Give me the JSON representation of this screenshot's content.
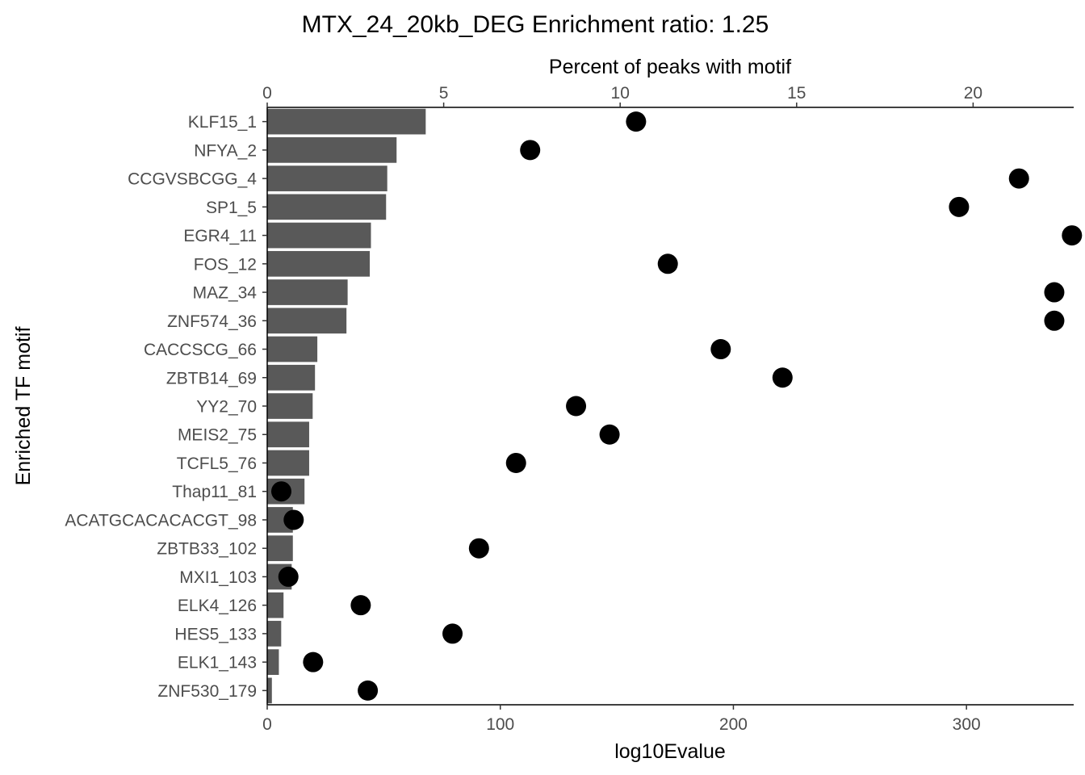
{
  "chart_data": {
    "type": "bar",
    "title": "MTX_24_20kb_DEG Enrichment ratio: 1.25",
    "ylabel": "Enriched TF motif",
    "xlabel_bottom": "log10Evalue",
    "xlabel_top": "Percent of peaks with motif",
    "xlim_bottom": [
      0,
      346
    ],
    "xlim_top": [
      0,
      22.85
    ],
    "xticks_bottom": [
      0,
      100,
      200,
      300
    ],
    "xticks_top": [
      0,
      5,
      10,
      15,
      20
    ],
    "grid": false,
    "categories": [
      "KLF15_1",
      "NFYA_2",
      "CCGVSBCGG_4",
      "SP1_5",
      "EGR4_11",
      "FOS_12",
      "MAZ_34",
      "ZNF574_36",
      "CACCSCG_66",
      "ZBTB14_69",
      "YY2_70",
      "MEIS2_75",
      "TCFL5_76",
      "Thap11_81",
      "ACATGCACACACGT_98",
      "ZBTB33_102",
      "MXI1_103",
      "ELK4_126",
      "HES5_133",
      "ELK1_143",
      "ZNF530_179"
    ],
    "series": [
      {
        "name": "log10Evalue",
        "type": "bar",
        "axis": "bottom",
        "values": [
          68,
          55.5,
          51.5,
          51,
          44.5,
          44,
          34.5,
          34,
          21.5,
          20.5,
          19.5,
          18,
          18,
          16,
          11,
          11,
          10.5,
          7,
          6,
          5,
          2
        ]
      },
      {
        "name": "Percent of peaks with motif",
        "type": "scatter",
        "axis": "top",
        "values": [
          10.45,
          7.45,
          21.3,
          19.6,
          22.8,
          11.35,
          22.3,
          22.3,
          12.85,
          14.6,
          8.75,
          9.7,
          7.05,
          0.4,
          0.75,
          6.0,
          0.6,
          2.65,
          5.25,
          1.3,
          2.85
        ]
      }
    ]
  }
}
